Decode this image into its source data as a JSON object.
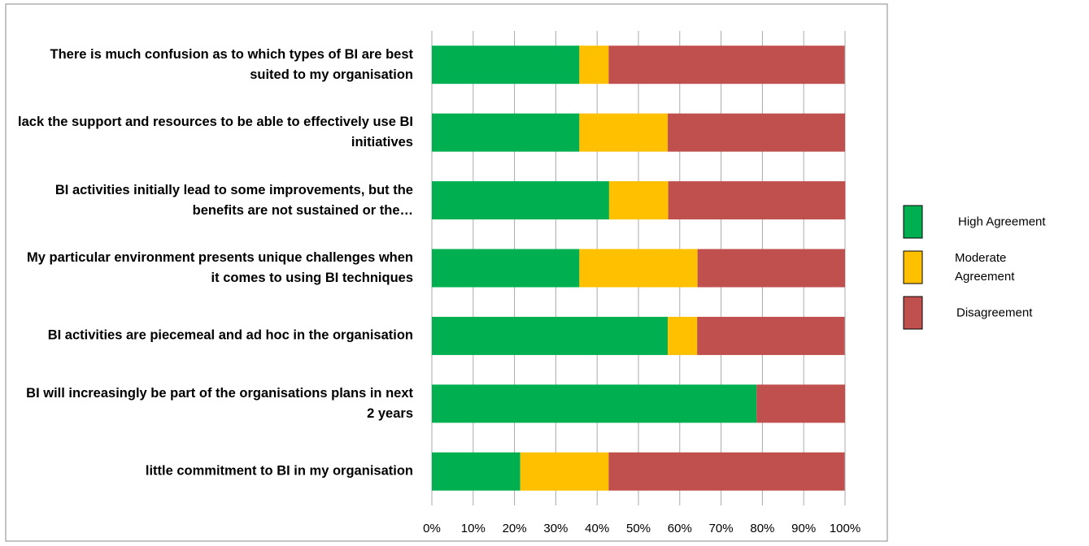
{
  "chart_data": {
    "type": "stacked_barh",
    "categories": [
      "There is much confusion as to which types of BI are best suited to my organisation",
      "lack the support and resources to be able to effectively use BI initiatives",
      "BI activities initially lead to some improvements, but the benefits are not sustained or the…",
      "My particular environment presents unique challenges when it comes to using BI techniques",
      "BI activities are piecemeal and ad hoc in the organisation",
      "BI will increasingly be part of the organisations plans in next 2 years",
      "little commitment to BI in my organisation"
    ],
    "series": [
      {
        "name": "High Agreement",
        "color": "#00b050",
        "values": [
          35.7,
          35.7,
          42.9,
          35.7,
          57.1,
          78.6,
          21.4
        ]
      },
      {
        "name": "Moderate Agreement",
        "color": "#ffc000",
        "values": [
          7.1,
          21.4,
          14.3,
          28.6,
          7.1,
          0,
          21.4
        ]
      },
      {
        "name": "Disagreement",
        "color": "#c0504d",
        "values": [
          57.1,
          42.9,
          42.9,
          35.7,
          35.7,
          21.4,
          57.1
        ]
      }
    ],
    "xlim": [
      0,
      100
    ],
    "xticks": [
      {
        "value": 0,
        "label": "0%"
      },
      {
        "value": 10,
        "label": "10%"
      },
      {
        "value": 20,
        "label": "20%"
      },
      {
        "value": 30,
        "label": "30%"
      },
      {
        "value": 40,
        "label": "40%"
      },
      {
        "value": 50,
        "label": "50%"
      },
      {
        "value": 60,
        "label": "60%"
      },
      {
        "value": 70,
        "label": "70%"
      },
      {
        "value": 80,
        "label": "80%"
      },
      {
        "value": 90,
        "label": "90%"
      },
      {
        "value": 100,
        "label": "100%"
      }
    ],
    "grid": true,
    "legend": "right"
  }
}
